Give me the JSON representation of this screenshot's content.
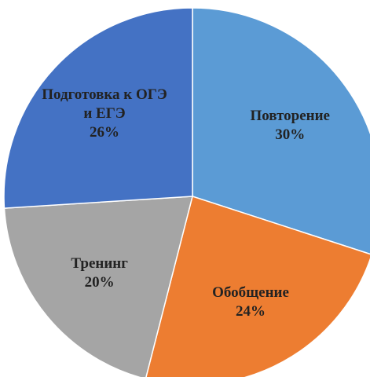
{
  "chart_data": {
    "type": "pie",
    "categories": [
      "Повторение",
      "Обобщение",
      "Тренинг",
      "Подготовка к ОГЭ и ЕГЭ"
    ],
    "values": [
      30,
      24,
      20,
      26
    ],
    "value_labels": [
      "30%",
      "24%",
      "20%",
      "26%"
    ],
    "colors": [
      "#5b9bd5",
      "#ed7d31",
      "#a5a5a5",
      "#4472c4"
    ]
  }
}
